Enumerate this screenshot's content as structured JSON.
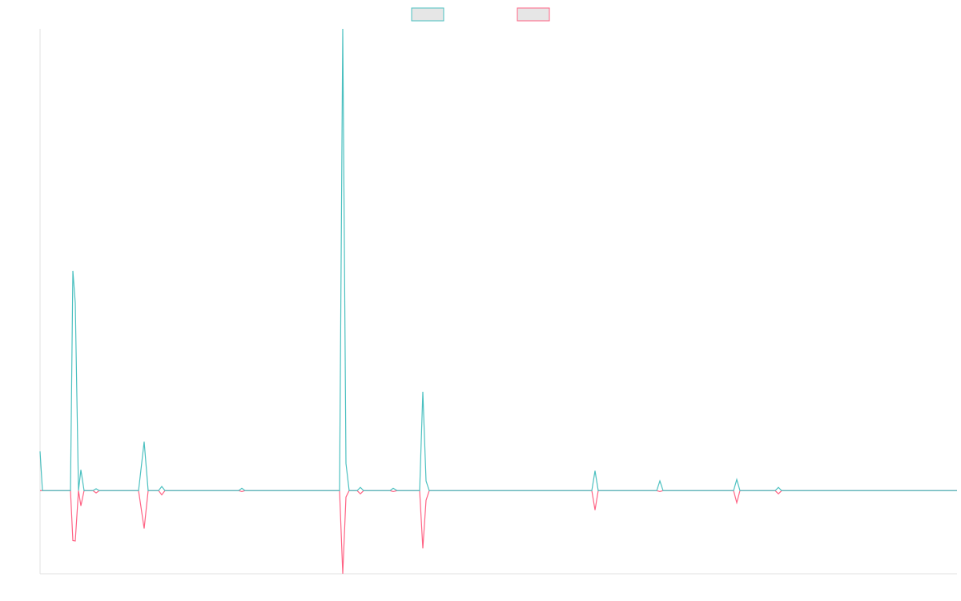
{
  "chart_data": {
    "type": "line",
    "legend": "top",
    "x": [
      0,
      3,
      38,
      41,
      44,
      48,
      51,
      55,
      66,
      70,
      74,
      123,
      130,
      135,
      148,
      152,
      156,
      248,
      252,
      256,
      374,
      378,
      382,
      386,
      396,
      400,
      404,
      437,
      441,
      446,
      474,
      478,
      482,
      486,
      689,
      693,
      697,
      770,
      774,
      778,
      866,
      870,
      874,
      918,
      922,
      926,
      1145
    ],
    "xlim": [
      0,
      1145
    ],
    "ylim": [
      -18,
      100
    ],
    "series": [
      {
        "color": "#ff6384",
        "values": [
          0,
          0,
          0,
          -10.8,
          -10.9,
          0,
          -3.3,
          0,
          0,
          -0.5,
          0,
          0,
          -8.2,
          0,
          0,
          -0.9,
          0,
          0,
          -0.2,
          0,
          0,
          -18,
          -1.4,
          0,
          0,
          -0.7,
          0,
          0,
          -0.2,
          0,
          0,
          -12.5,
          -2.1,
          0,
          0,
          -4.2,
          0,
          0,
          -0.2,
          0,
          0,
          -2.6,
          0,
          0,
          -0.7,
          0,
          0
        ]
      },
      {
        "color": "#4bc0c0",
        "values": [
          8.5,
          0,
          0,
          47.6,
          40.6,
          0,
          4.5,
          0,
          0,
          0.4,
          0,
          0,
          10.6,
          0,
          0,
          0.9,
          0,
          0,
          0.5,
          0,
          0,
          100,
          5.9,
          0,
          0,
          0.7,
          0,
          0,
          0.5,
          0,
          0,
          21.4,
          2.1,
          0,
          0,
          4.3,
          0,
          0,
          2.1,
          0,
          0,
          2.4,
          0,
          0,
          0.7,
          0,
          0
        ]
      }
    ]
  }
}
